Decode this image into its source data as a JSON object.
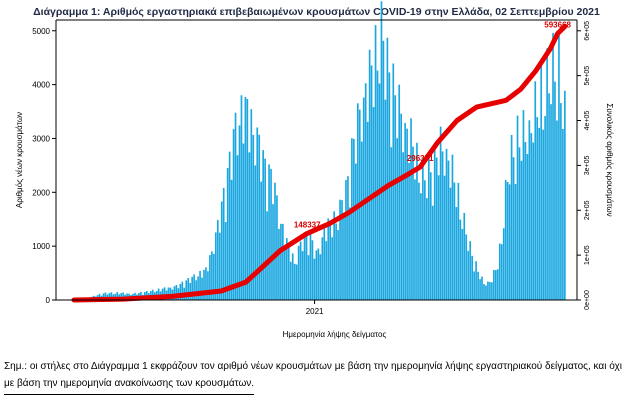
{
  "page": {
    "title": "Διάγραμμα 1: Αριθμός εργαστηριακά επιβεβαιωμένων κρουσμάτων COVID-19 στην Ελλάδα, 02 Σεπτεμβρίου 2021",
    "note": "Σημ.: οι στήλες στο Διάγραμμα 1 εκφράζουν τον αριθμό νέων κρουσμάτων με βάση την ημερομηνία λήψης εργαστηριακού δείγματος, και όχι με βάση την ημερομηνία ανακοίνωσης των κρουσμάτων."
  },
  "colors": {
    "bars": "#1aa7e0",
    "cumulative_line": "#e60000",
    "annotation": "#d40000",
    "axis": "#000000"
  },
  "chart_data": {
    "type": "bar",
    "title": "Διάγραμμα 1: Αριθμός εργαστηριακά επιβεβαιωμένων κρουσμάτων COVID-19 στην Ελλάδα, 02 Σεπτεμβρίου 2021",
    "xlabel": "Ημερομηνία λήψης δείγματος",
    "ylabel": "Αριθμός νέων κρουσμάτων",
    "y2label": "Συνολικός αριθμός κρουσμάτων",
    "x_tick_labels": [
      "2021"
    ],
    "x_tick_positions": [
      0.49
    ],
    "y_ticks": [
      0,
      1000,
      2000,
      3000,
      4000,
      5000
    ],
    "y_tick_labels": [
      "0",
      "1000",
      "2000",
      "3000",
      "4000",
      "5000"
    ],
    "y2_ticks": [
      0,
      100000,
      200000,
      300000,
      400000,
      500000,
      600000
    ],
    "y2_tick_labels": [
      "0e+00",
      "1e+05",
      "2e+05",
      "3e+05",
      "4e+05",
      "5e+05",
      "6e+05"
    ],
    "ylim": [
      0,
      5200
    ],
    "y2lim": [
      0,
      624000
    ],
    "grid": false,
    "annotations": [
      {
        "text": "148337",
        "x_frac": 0.475,
        "value": 148337
      },
      {
        "text": "296371",
        "x_frac": 0.705,
        "value": 296371
      },
      {
        "text": "593668",
        "x_frac": 0.985,
        "value": 593668
      }
    ],
    "daily_series": {
      "name": "Νέα κρούσματα",
      "x_frac": [
        0.0,
        0.03,
        0.06,
        0.09,
        0.12,
        0.15,
        0.18,
        0.21,
        0.24,
        0.27,
        0.29,
        0.31,
        0.33,
        0.345,
        0.36,
        0.375,
        0.39,
        0.405,
        0.42,
        0.435,
        0.45,
        0.465,
        0.48,
        0.495,
        0.51,
        0.525,
        0.54,
        0.555,
        0.565,
        0.575,
        0.585,
        0.595,
        0.61,
        0.625,
        0.64,
        0.655,
        0.67,
        0.685,
        0.7,
        0.715,
        0.73,
        0.745,
        0.76,
        0.775,
        0.79,
        0.805,
        0.82,
        0.835,
        0.85,
        0.865,
        0.875,
        0.885,
        0.9,
        0.915,
        0.93,
        0.945,
        0.96,
        0.975,
        0.985,
        1.0
      ],
      "values": [
        10,
        40,
        120,
        130,
        110,
        150,
        200,
        250,
        400,
        550,
        1200,
        2100,
        3200,
        3550,
        3300,
        2900,
        2400,
        2200,
        1500,
        1000,
        700,
        1100,
        1200,
        800,
        1300,
        1400,
        1600,
        2000,
        2600,
        3100,
        3500,
        3900,
        4300,
        4950,
        4200,
        3700,
        3300,
        3000,
        2500,
        2200,
        2400,
        2800,
        2700,
        2200,
        1600,
        1000,
        600,
        300,
        350,
        700,
        1500,
        2400,
        2900,
        3000,
        3200,
        3600,
        3900,
        4200,
        4400,
        3300
      ]
    },
    "cumulative_series": {
      "name": "Συνολικά κρούσματα",
      "x_frac": [
        0.0,
        0.1,
        0.2,
        0.3,
        0.35,
        0.38,
        0.42,
        0.475,
        0.52,
        0.56,
        0.6,
        0.64,
        0.68,
        0.705,
        0.74,
        0.78,
        0.82,
        0.86,
        0.88,
        0.91,
        0.94,
        0.97,
        0.985,
        1.0
      ],
      "values": [
        0,
        2000,
        8000,
        20000,
        40000,
        70000,
        110000,
        148337,
        170000,
        195000,
        225000,
        255000,
        280000,
        296371,
        350000,
        400000,
        430000,
        440000,
        445000,
        470000,
        510000,
        560000,
        593668,
        610000
      ]
    }
  }
}
